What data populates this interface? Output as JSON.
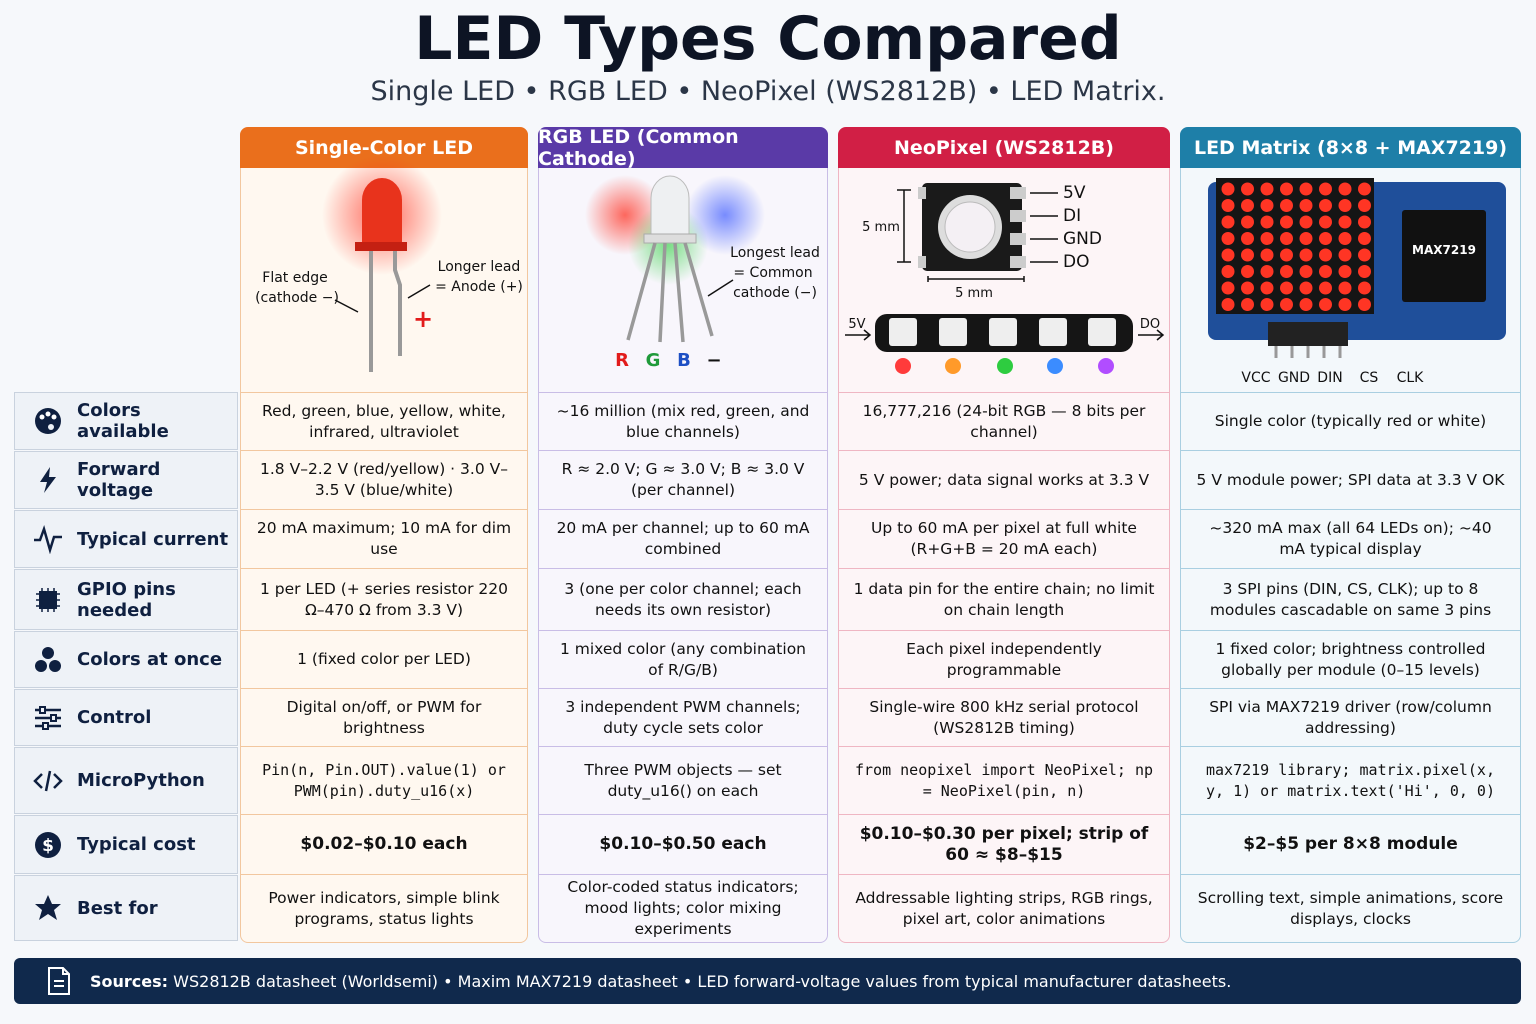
{
  "title": "LED Types Compared",
  "subtitle": "Single LED • RGB LED • NeoPixel (WS2812B) • LED Matrix.",
  "columns": [
    {
      "header": "Single-Color LED",
      "labels": [
        "Flat edge",
        "(cathode −)",
        "Longer lead",
        "= Anode (+)",
        "+"
      ]
    },
    {
      "header": "RGB LED (Common Cathode)",
      "labels": [
        "Longest lead",
        "= Common",
        "cathode (−)",
        "R",
        "G",
        "B",
        "−"
      ]
    },
    {
      "header": "NeoPixel (WS2812B)",
      "labels": [
        "5 mm",
        "5V",
        "DI",
        "GND",
        "DO",
        "5 mm",
        "5V",
        "DO"
      ]
    },
    {
      "header": "LED Matrix (8×8 + MAX7219)",
      "labels": [
        "MAX7219",
        "VCC",
        "GND",
        "DIN",
        "CS",
        "CLK"
      ]
    }
  ],
  "rows": [
    {
      "label": "Colors available",
      "cells": [
        "Red, green, blue, yellow, white, infrared, ultraviolet",
        "~16 million (mix red, green, and blue channels)",
        "16,777,216 (24-bit RGB — 8 bits per channel)",
        "Single color (typically red or white)"
      ]
    },
    {
      "label": "Forward voltage",
      "cells": [
        "1.8 V–2.2 V (red/yellow) · 3.0 V–3.5 V (blue/white)",
        "R ≈ 2.0 V;  G ≈ 3.0 V; B ≈ 3.0 V (per channel)",
        "5 V power; data signal works at 3.3 V",
        "5 V module power; SPI data at 3.3 V OK"
      ]
    },
    {
      "label": "Typical current",
      "cells": [
        "20 mA maximum; 10 mA for dim use",
        "20 mA per channel; up to 60 mA combined",
        "Up to 60 mA per pixel at full white (R+G+B = 20 mA each)",
        "~320 mA max (all 64 LEDs on); ~40 mA typical display"
      ]
    },
    {
      "label": "GPIO pins needed",
      "cells": [
        "1 per LED (+ series resistor 220 Ω–470 Ω from 3.3 V)",
        "3 (one per color channel; each needs its own resistor)",
        "1 data pin for the entire chain; no limit on chain length",
        "3 SPI pins (DIN, CS, CLK); up to 8 modules cascadable on same 3 pins"
      ]
    },
    {
      "label": "Colors at once",
      "cells": [
        "1 (fixed color per LED)",
        "1 mixed color (any combination of R/G/B)",
        "Each pixel independently programmable",
        "1 fixed color; brightness controlled globally per module (0–15 levels)"
      ]
    },
    {
      "label": "Control",
      "cells": [
        "Digital on/off, or PWM for brightness",
        "3 independent PWM channels; duty cycle sets color",
        "Single-wire 800 kHz serial protocol (WS2812B timing)",
        "SPI via MAX7219 driver (row/column addressing)"
      ]
    },
    {
      "label": "MicroPython",
      "cells": [
        "Pin(n, Pin.OUT).value(1) or PWM(pin).duty_u16(x)",
        "Three PWM objects — set duty_u16() on each",
        "from neopixel import NeoPixel; np = NeoPixel(pin, n)",
        "max7219 library; matrix.pixel(x, y, 1) or matrix.text('Hi', 0, 0)"
      ]
    },
    {
      "label": "Typical cost",
      "cells": [
        "$0.02–$0.10 each",
        "$0.10–$0.50 each",
        "$0.10–$0.30 per pixel; strip of 60 ≈ $8–$15",
        "$2–$5 per 8×8 module"
      ]
    },
    {
      "label": "Best for",
      "cells": [
        "Power indicators, simple blink programs, status lights",
        "Color-coded status indicators; mood lights; color mixing experiments",
        "Addressable lighting strips, RGB rings, pixel art, color animations",
        "Scrolling text, simple animations, score displays, clocks"
      ]
    }
  ],
  "footer": {
    "label": "Sources:",
    "text": "WS2812B datasheet (Worldsemi)  •  Maxim MAX7219 datasheet  •  LED forward-voltage values from typical manufacturer datasheets."
  }
}
